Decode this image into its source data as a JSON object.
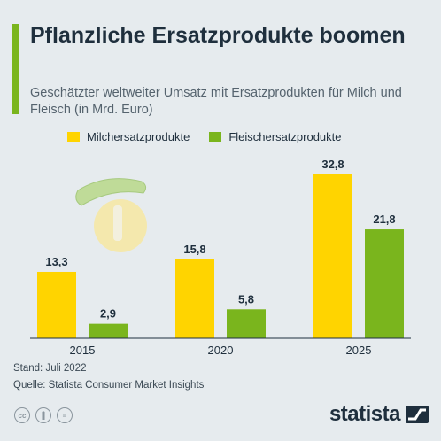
{
  "header": {
    "title": "Pflanzliche Ersatzprodukte boomen",
    "subtitle": "Geschätzter weltweiter Umsatz mit Ersatzprodukten für Milch und Fleisch (in Mrd. Euro)"
  },
  "chart_data": {
    "type": "bar",
    "categories": [
      "2015",
      "2020",
      "2025"
    ],
    "series": [
      {
        "name": "Milchersatzprodukte",
        "values": [
          13.3,
          15.8,
          32.8
        ],
        "labels": [
          "13,3",
          "15,8",
          "32,8"
        ],
        "color": "#ffd400"
      },
      {
        "name": "Fleischersatzprodukte",
        "values": [
          2.9,
          5.8,
          21.8
        ],
        "labels": [
          "2,9",
          "5,8",
          "21,8"
        ],
        "color": "#7ab51d"
      }
    ],
    "ylim": [
      0,
      32.8
    ],
    "grid": false,
    "legend": "top"
  },
  "footer": {
    "stand": "Stand: Juli 2022",
    "quelle": "Quelle: Statista Consumer Market Insights"
  },
  "icons": [
    "cc-icon",
    "person-icon",
    "equals-icon"
  ],
  "logo": {
    "text": "statista"
  }
}
